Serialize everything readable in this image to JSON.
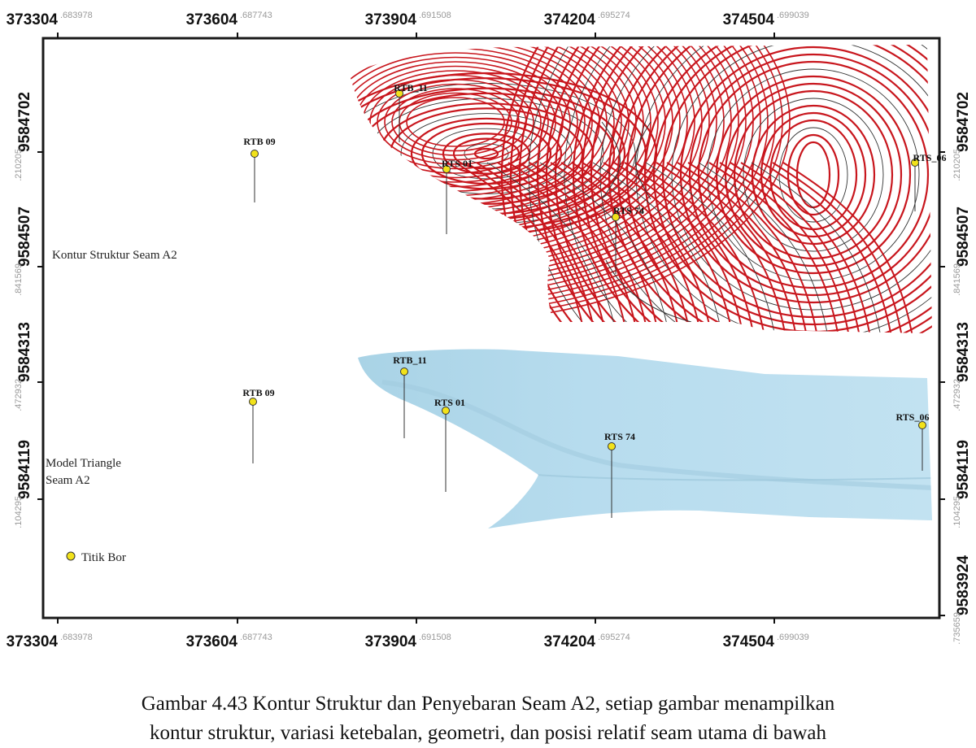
{
  "map": {
    "x_ticks": [
      {
        "main": "373304",
        "dec": ".683978"
      },
      {
        "main": "373604",
        "dec": ".687743"
      },
      {
        "main": "373904",
        "dec": ".691508"
      },
      {
        "main": "374204",
        "dec": ".695274"
      },
      {
        "main": "374504",
        "dec": ".699039"
      }
    ],
    "y_ticks_left": [
      {
        "main": "9584702",
        "dec": ".210205"
      },
      {
        "main": "9584507",
        "dec": ".841569"
      },
      {
        "main": "9584313",
        "dec": ".472932"
      },
      {
        "main": "9584119",
        "dec": ".104295"
      }
    ],
    "y_ticks_right": [
      {
        "main": "9584702",
        "dec": ".210205"
      },
      {
        "main": "9584507",
        "dec": ".841569"
      },
      {
        "main": "9584313",
        "dec": ".472932"
      },
      {
        "main": "9584119",
        "dec": ".104295"
      },
      {
        "main": "9583924",
        "dec": ".735659"
      }
    ],
    "contour_panel": {
      "label": "Kontur Struktur Seam A2",
      "wells": [
        {
          "name": "RTB_11"
        },
        {
          "name": "RTB 09"
        },
        {
          "name": "RTS 01"
        },
        {
          "name": "RTS 74"
        },
        {
          "name": "RTS_06"
        }
      ],
      "colors": {
        "major": "#c8161d",
        "minor": "#333333"
      }
    },
    "triangle_panel": {
      "label_line1": "Model Triangle",
      "label_line2": "Seam A2",
      "wells": [
        {
          "name": "RTB_11"
        },
        {
          "name": "RTB 09"
        },
        {
          "name": "RTS 01"
        },
        {
          "name": "RTS 74"
        },
        {
          "name": "RTS_06"
        }
      ],
      "colors": {
        "fill": "#b5dced"
      }
    },
    "legend": {
      "label": "Titik Bor",
      "marker_color": "#f2e21a"
    }
  },
  "caption": {
    "line1": "Gambar 4.43 Kontur Struktur dan Penyebaran Seam A2, setiap gambar menampilkan",
    "line2": "kontur struktur, variasi ketebalan, geometri, dan posisi relatif seam utama di bawah"
  }
}
